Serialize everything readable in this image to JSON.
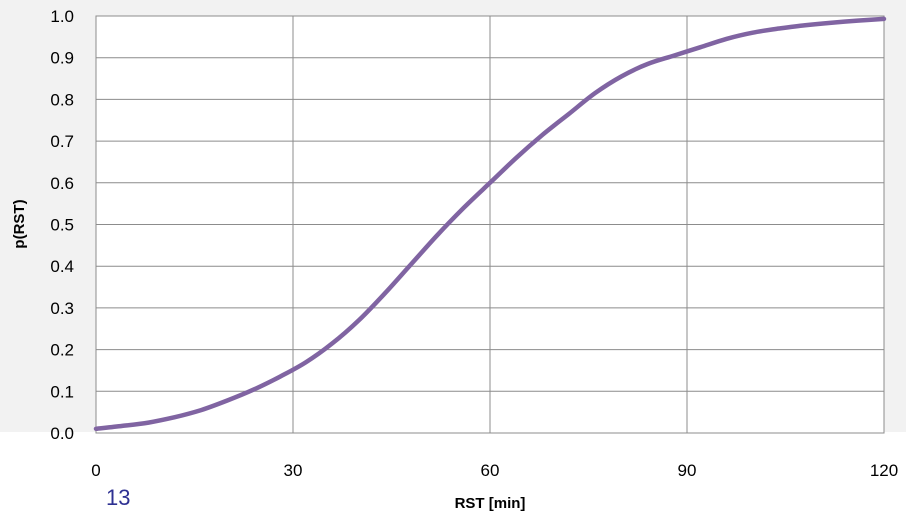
{
  "slide": {
    "page_number": "13"
  },
  "colors": {
    "line": "#8064a2",
    "grid": "#8c8c8c",
    "background": "#f2f2f2",
    "plot_area": "#ffffff",
    "page_number": "#2e3192"
  },
  "chart_data": {
    "type": "line",
    "title": "",
    "xlabel": "RST [min]",
    "ylabel": "p(RST)",
    "xlim": [
      0,
      120
    ],
    "ylim": [
      0,
      1
    ],
    "x_ticks": [
      0,
      30,
      60,
      90,
      120
    ],
    "y_ticks": [
      "0.0",
      "0.1",
      "0.2",
      "0.3",
      "0.4",
      "0.5",
      "0.6",
      "0.7",
      "0.8",
      "0.9",
      "1.0"
    ],
    "grid": true,
    "legend": "none",
    "series": [
      {
        "x": [
          0,
          4,
          8,
          12,
          16,
          20,
          24,
          28,
          32,
          36,
          40,
          44,
          48,
          52,
          56,
          60,
          64,
          68,
          72,
          76,
          80,
          84,
          88,
          92,
          96,
          100,
          104,
          108,
          112,
          116,
          120
        ],
        "y": [
          0.01,
          0.017,
          0.025,
          0.038,
          0.055,
          0.078,
          0.104,
          0.135,
          0.17,
          0.215,
          0.27,
          0.335,
          0.405,
          0.475,
          0.54,
          0.6,
          0.66,
          0.715,
          0.765,
          0.815,
          0.855,
          0.885,
          0.905,
          0.925,
          0.945,
          0.96,
          0.97,
          0.978,
          0.984,
          0.989,
          0.993
        ]
      }
    ]
  }
}
